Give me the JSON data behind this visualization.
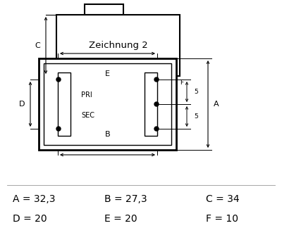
{
  "bg_color": "#ffffff",
  "line_color": "#000000",
  "title_text": "Zeichnung 2",
  "values_text": [
    "A = 32,3",
    "B = 27,3",
    "C = 34",
    "D = 20",
    "E = 20",
    "F = 10"
  ],
  "font_size_labels": 8,
  "font_size_values": 10,
  "font_size_dim": 8
}
